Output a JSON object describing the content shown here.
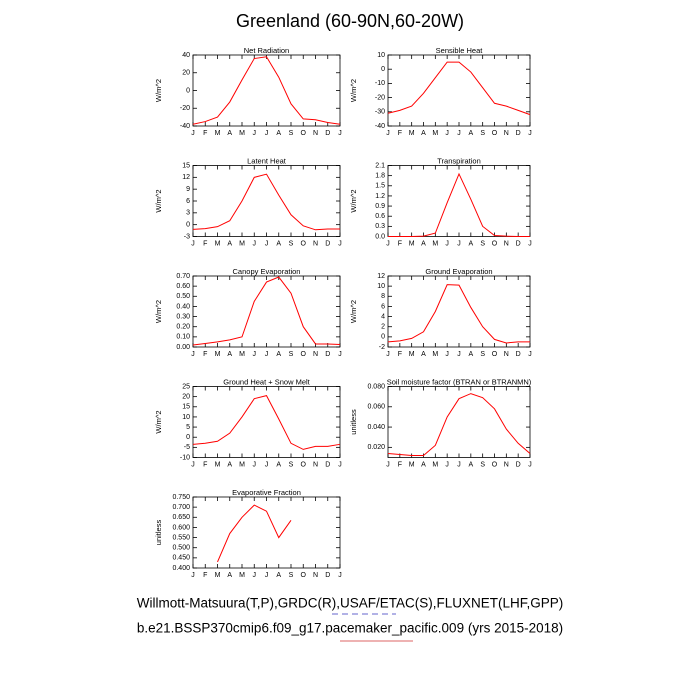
{
  "title": "Greenland (60-90N,60-20W)",
  "footer": [
    "Willmott-Matsuura(T,P),GRDC(R),USAF/ETAC(S),FLUXNET(LHF,GPP)",
    "b.e21.BSSP370cmip6.f09_g17.pacemaker_pacific.009 (yrs 2015-2018)"
  ],
  "chart_data": [
    {
      "type": "line",
      "title": "Net Radiation",
      "ylabel": "W/m^2",
      "categories": [
        "J",
        "F",
        "M",
        "A",
        "M",
        "J",
        "J",
        "A",
        "S",
        "O",
        "N",
        "D",
        "J"
      ],
      "series": [
        {
          "color": "#ff0000",
          "values": [
            -38,
            -35,
            -30,
            -13,
            12,
            36,
            38,
            15,
            -15,
            -32,
            -33,
            -36,
            -38
          ]
        }
      ],
      "ylim": [
        -40,
        40
      ],
      "yticks": [
        -40,
        -20,
        0,
        20,
        40
      ]
    },
    {
      "type": "line",
      "title": "Sensible Heat",
      "ylabel": "W/m^2",
      "categories": [
        "J",
        "F",
        "M",
        "A",
        "M",
        "J",
        "J",
        "A",
        "S",
        "O",
        "N",
        "D",
        "J"
      ],
      "series": [
        {
          "color": "#ff0000",
          "values": [
            -31,
            -29,
            -26,
            -17,
            -6,
            5,
            5,
            -2,
            -13,
            -24,
            -26,
            -29,
            -32
          ]
        }
      ],
      "ylim": [
        -40,
        10
      ],
      "yticks": [
        -40,
        -30,
        -20,
        -10,
        0,
        10
      ]
    },
    {
      "type": "line",
      "title": "Latent Heat",
      "ylabel": "W/m^2",
      "categories": [
        "J",
        "F",
        "M",
        "A",
        "M",
        "J",
        "J",
        "A",
        "S",
        "O",
        "N",
        "D",
        "J"
      ],
      "series": [
        {
          "color": "#ff0000",
          "values": [
            -1.2,
            -1.0,
            -0.5,
            1.0,
            6,
            12,
            12.8,
            7.5,
            2.5,
            -0.3,
            -1.3,
            -1.1,
            -1.1
          ]
        }
      ],
      "ylim": [
        -3,
        15
      ],
      "yticks": [
        -3,
        0,
        3,
        6,
        9,
        12,
        15
      ]
    },
    {
      "type": "line",
      "title": "Transpiration",
      "ylabel": "W/m^2",
      "categories": [
        "J",
        "F",
        "M",
        "A",
        "M",
        "J",
        "J",
        "A",
        "S",
        "O",
        "N",
        "D",
        "J"
      ],
      "series": [
        {
          "color": "#ff0000",
          "values": [
            0,
            0,
            0,
            0.01,
            0.1,
            1.0,
            1.85,
            1.1,
            0.3,
            0.03,
            0.01,
            0,
            0
          ]
        }
      ],
      "ylim": [
        0,
        2.1
      ],
      "yticks": [
        {
          "value": 0,
          "label": "0.0"
        },
        0.3,
        0.6,
        0.9,
        1.2,
        1.5,
        1.8,
        2.1
      ]
    },
    {
      "type": "line",
      "title": "Canopy Evaporation",
      "ylabel": "W/m^2",
      "categories": [
        "J",
        "F",
        "M",
        "A",
        "M",
        "J",
        "J",
        "A",
        "S",
        "O",
        "N",
        "D",
        "J"
      ],
      "series": [
        {
          "color": "#ff0000",
          "values": [
            0.02,
            0.035,
            0.05,
            0.07,
            0.1,
            0.45,
            0.64,
            0.69,
            0.53,
            0.2,
            0.03,
            0.03,
            0.025
          ]
        }
      ],
      "ylim": [
        0,
        0.7
      ],
      "yticks": [
        {
          "value": 0,
          "label": "0.00"
        },
        {
          "value": 0.1,
          "label": "0.10"
        },
        {
          "value": 0.2,
          "label": "0.20"
        },
        {
          "value": 0.3,
          "label": "0.30"
        },
        {
          "value": 0.4,
          "label": "0.40"
        },
        {
          "value": 0.5,
          "label": "0.50"
        },
        {
          "value": 0.6,
          "label": "0.60"
        },
        {
          "value": 0.7,
          "label": "0.70"
        }
      ]
    },
    {
      "type": "line",
      "title": "Ground Evaporation",
      "ylabel": "W/m^2",
      "categories": [
        "J",
        "F",
        "M",
        "A",
        "M",
        "J",
        "J",
        "A",
        "S",
        "O",
        "N",
        "D",
        "J"
      ],
      "series": [
        {
          "color": "#ff0000",
          "values": [
            -1.0,
            -0.8,
            -0.3,
            1.0,
            5,
            10.3,
            10.2,
            5.8,
            2,
            -0.5,
            -1.2,
            -1.0,
            -1.0
          ]
        }
      ],
      "ylim": [
        -2,
        12
      ],
      "yticks": [
        -2,
        0,
        2,
        4,
        6,
        8,
        10,
        12
      ]
    },
    {
      "type": "line",
      "title": "Ground Heat + Snow Melt",
      "ylabel": "W/m^2",
      "categories": [
        "J",
        "F",
        "M",
        "A",
        "M",
        "J",
        "J",
        "A",
        "S",
        "O",
        "N",
        "D",
        "J"
      ],
      "series": [
        {
          "color": "#ff0000",
          "values": [
            -3.5,
            -3,
            -2,
            2,
            10,
            19,
            20.5,
            9,
            -3,
            -6,
            -4.5,
            -4.5,
            -3.5
          ]
        }
      ],
      "ylim": [
        -10,
        25
      ],
      "yticks": [
        -10,
        -5,
        0,
        5,
        10,
        15,
        20,
        25
      ]
    },
    {
      "type": "line",
      "title": "Soil moisture factor (BTRAN or BTRANMN)",
      "ylabel": "unitless",
      "categories": [
        "J",
        "F",
        "M",
        "A",
        "M",
        "J",
        "J",
        "A",
        "S",
        "O",
        "N",
        "D",
        "J"
      ],
      "series": [
        {
          "color": "#ff0000",
          "values": [
            0.014,
            0.013,
            0.012,
            0.012,
            0.022,
            0.05,
            0.068,
            0.073,
            0.069,
            0.058,
            0.038,
            0.024,
            0.014
          ]
        }
      ],
      "ylim": [
        0.01,
        0.08
      ],
      "yticks": [
        {
          "value": 0.02,
          "label": "0.020"
        },
        {
          "value": 0.04,
          "label": "0.040"
        },
        {
          "value": 0.06,
          "label": "0.060"
        },
        {
          "value": 0.08,
          "label": "0.080"
        }
      ]
    },
    {
      "type": "line",
      "title": "Evaporative Fraction",
      "ylabel": "unitless",
      "categories": [
        "J",
        "F",
        "M",
        "A",
        "M",
        "J",
        "J",
        "A",
        "S",
        "O",
        "N",
        "D",
        "J"
      ],
      "series": [
        {
          "color": "#ff0000",
          "values": [
            null,
            null,
            0.43,
            0.57,
            0.65,
            0.71,
            0.68,
            0.55,
            0.635,
            null,
            null,
            null,
            null
          ]
        }
      ],
      "ylim": [
        0.4,
        0.75
      ],
      "yticks": [
        {
          "value": 0.4,
          "label": "0.400"
        },
        {
          "value": 0.45,
          "label": "0.450"
        },
        {
          "value": 0.5,
          "label": "0.500"
        },
        {
          "value": 0.55,
          "label": "0.550"
        },
        {
          "value": 0.6,
          "label": "0.600"
        },
        {
          "value": 0.65,
          "label": "0.650"
        },
        {
          "value": 0.7,
          "label": "0.700"
        },
        {
          "value": 0.75,
          "label": "0.750"
        }
      ]
    }
  ]
}
